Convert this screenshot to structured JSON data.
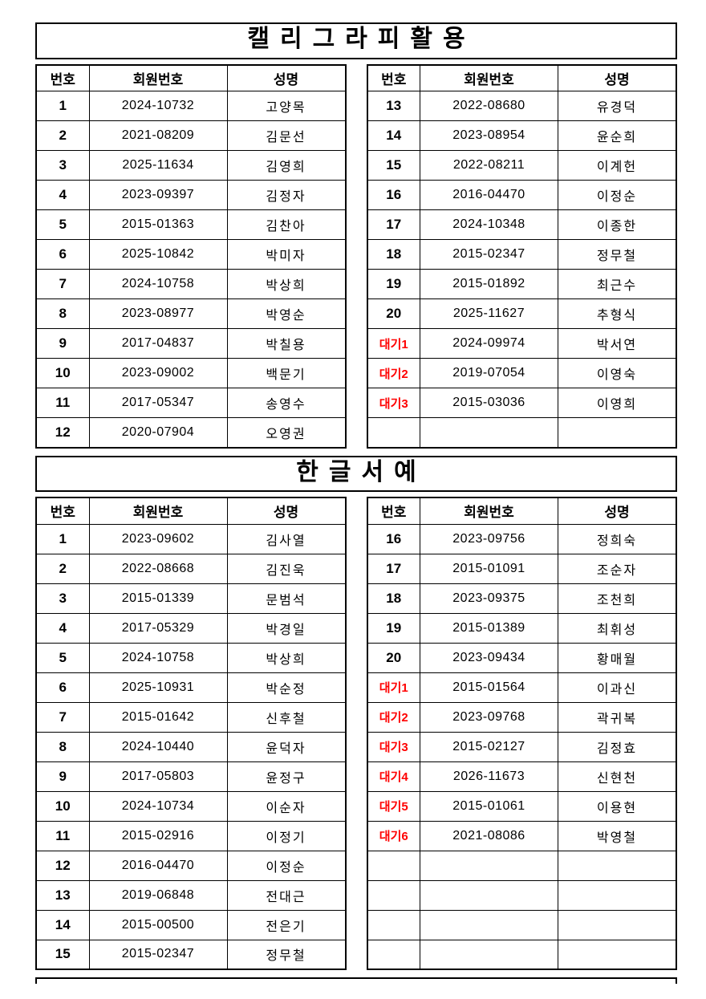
{
  "colors": {
    "wait_label": "#ff0000",
    "border": "#000000",
    "text": "#000000",
    "background": "#ffffff"
  },
  "sections": [
    {
      "title": "캘리그라피활용",
      "tables": [
        {
          "headers": [
            "번호",
            "회원번호",
            "성명"
          ],
          "rows": [
            [
              "1",
              "2024-10732",
              "고양목"
            ],
            [
              "2",
              "2021-08209",
              "김문선"
            ],
            [
              "3",
              "2025-11634",
              "김영희"
            ],
            [
              "4",
              "2023-09397",
              "김정자"
            ],
            [
              "5",
              "2015-01363",
              "김찬아"
            ],
            [
              "6",
              "2025-10842",
              "박미자"
            ],
            [
              "7",
              "2024-10758",
              "박상희"
            ],
            [
              "8",
              "2023-08977",
              "박영순"
            ],
            [
              "9",
              "2017-04837",
              "박칠용"
            ],
            [
              "10",
              "2023-09002",
              "백문기"
            ],
            [
              "11",
              "2017-05347",
              "송영수"
            ],
            [
              "12",
              "2020-07904",
              "오영권"
            ]
          ]
        },
        {
          "headers": [
            "번호",
            "회원번호",
            "성명"
          ],
          "rows": [
            [
              "13",
              "2022-08680",
              "유경덕"
            ],
            [
              "14",
              "2023-08954",
              "윤순희"
            ],
            [
              "15",
              "2022-08211",
              "이계헌"
            ],
            [
              "16",
              "2016-04470",
              "이정순"
            ],
            [
              "17",
              "2024-10348",
              "이종한"
            ],
            [
              "18",
              "2015-02347",
              "정무철"
            ],
            [
              "19",
              "2015-01892",
              "최근수"
            ],
            [
              "20",
              "2025-11627",
              "추형식"
            ],
            [
              "대기1",
              "2024-09974",
              "박서연"
            ],
            [
              "대기2",
              "2019-07054",
              "이영숙"
            ],
            [
              "대기3",
              "2015-03036",
              "이영희"
            ],
            [
              "",
              "",
              ""
            ]
          ]
        }
      ]
    },
    {
      "title": "한글서예",
      "tables": [
        {
          "headers": [
            "번호",
            "회원번호",
            "성명"
          ],
          "rows": [
            [
              "1",
              "2023-09602",
              "김사열"
            ],
            [
              "2",
              "2022-08668",
              "김진욱"
            ],
            [
              "3",
              "2015-01339",
              "문범석"
            ],
            [
              "4",
              "2017-05329",
              "박경일"
            ],
            [
              "5",
              "2024-10758",
              "박상희"
            ],
            [
              "6",
              "2025-10931",
              "박순정"
            ],
            [
              "7",
              "2015-01642",
              "신후철"
            ],
            [
              "8",
              "2024-10440",
              "윤덕자"
            ],
            [
              "9",
              "2017-05803",
              "윤정구"
            ],
            [
              "10",
              "2024-10734",
              "이순자"
            ],
            [
              "11",
              "2015-02916",
              "이정기"
            ],
            [
              "12",
              "2016-04470",
              "이정순"
            ],
            [
              "13",
              "2019-06848",
              "전대근"
            ],
            [
              "14",
              "2015-00500",
              "전은기"
            ],
            [
              "15",
              "2015-02347",
              "정무철"
            ]
          ]
        },
        {
          "headers": [
            "번호",
            "회원번호",
            "성명"
          ],
          "rows": [
            [
              "16",
              "2023-09756",
              "정희숙"
            ],
            [
              "17",
              "2015-01091",
              "조순자"
            ],
            [
              "18",
              "2023-09375",
              "조천희"
            ],
            [
              "19",
              "2015-01389",
              "최휘성"
            ],
            [
              "20",
              "2023-09434",
              "황매월"
            ],
            [
              "대기1",
              "2015-01564",
              "이과신"
            ],
            [
              "대기2",
              "2023-09768",
              "곽귀복"
            ],
            [
              "대기3",
              "2015-02127",
              "김정효"
            ],
            [
              "대기4",
              "2026-11673",
              "신현천"
            ],
            [
              "대기5",
              "2015-01061",
              "이용현"
            ],
            [
              "대기6",
              "2021-08086",
              "박영철"
            ],
            [
              "",
              "",
              ""
            ],
            [
              "",
              "",
              ""
            ],
            [
              "",
              "",
              ""
            ],
            [
              "",
              "",
              ""
            ]
          ]
        }
      ]
    }
  ]
}
